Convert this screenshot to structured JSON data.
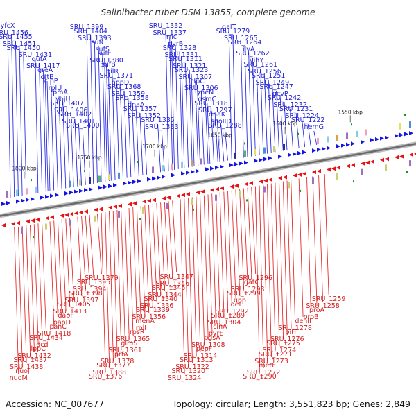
{
  "title": "Salinibacter ruber DSM 13855, complete genome",
  "footer": {
    "accession": "Accession: NC_007677",
    "summary": "Topology: circular; Length: 3,551,823 bp; Genes: 2,849"
  },
  "kbp_marks": [
    {
      "label": "1800 kbp",
      "a": -0.93
    },
    {
      "label": "1750 kbp",
      "a": -0.6
    },
    {
      "label": "1700 kbp",
      "a": -0.27
    },
    {
      "label": "1650 kbp",
      "a": 0.06
    },
    {
      "label": "1600 kbp",
      "a": 0.39
    },
    {
      "label": "1550 kbp",
      "a": 0.72
    }
  ],
  "top_genes": [
    [
      "yfcX",
      -1.0
    ],
    [
      "SRU_1456",
      -0.98
    ],
    [
      "SRU_1455",
      -0.96
    ],
    [
      "SRU_1451",
      -0.94
    ],
    [
      "SRU_1450",
      -0.92
    ],
    [
      "SRU_1431",
      -0.86
    ],
    [
      "gufA",
      -0.84
    ],
    [
      "SRU_1417",
      -0.82
    ],
    [
      "greA",
      -0.81
    ],
    [
      "crtB",
      -0.8
    ],
    [
      "clpP",
      -0.78
    ],
    [
      "rplU",
      -0.76
    ],
    [
      "rpmA",
      -0.74
    ],
    [
      "ybjU",
      -0.72
    ],
    [
      "SRU_1407",
      -0.7
    ],
    [
      "SRU_1406",
      -0.68
    ],
    [
      "SRU_1402",
      -0.66
    ],
    [
      "SRU_1401",
      -0.64
    ],
    [
      "SRU_1400",
      -0.62
    ],
    [
      "SRU_1399",
      -0.6
    ],
    [
      "SRU_1404",
      -0.58
    ],
    [
      "SRU_1393",
      -0.56
    ],
    [
      "sufC",
      -0.54
    ],
    [
      "sufS",
      -0.52
    ],
    [
      "sufE",
      -0.51
    ],
    [
      "SRU_1380",
      -0.5
    ],
    [
      "sufB",
      -0.49
    ],
    [
      "pilR",
      -0.47
    ],
    [
      "SRU_1371",
      -0.45
    ],
    [
      "hppD",
      -0.43
    ],
    [
      "SRU_1368",
      -0.41
    ],
    [
      "SRU_1359",
      -0.39
    ],
    [
      "SRU_1358",
      -0.37
    ],
    [
      "dnaA",
      -0.35
    ],
    [
      "SRU_1357",
      -0.33
    ],
    [
      "SRU_1352",
      -0.31
    ],
    [
      "SRU_1335",
      -0.24
    ],
    [
      "SRU_1333",
      -0.22
    ],
    [
      "SRU_1332",
      -0.2
    ],
    [
      "SRU_1337",
      -0.18
    ],
    [
      "rnc",
      -0.17
    ],
    [
      "pyrB",
      -0.15
    ],
    [
      "SRU_1328",
      -0.13
    ],
    [
      "SRU_1331",
      -0.12
    ],
    [
      "SRU_1311",
      -0.1
    ],
    [
      "SRU_1321",
      -0.08
    ],
    [
      "SRU_1323",
      -0.07
    ],
    [
      "SRU_1307",
      -0.05
    ],
    [
      "clpC",
      -0.04
    ],
    [
      "SRU_1306",
      -0.02
    ],
    [
      "yneN",
      0.0
    ],
    [
      "osmC",
      0.01
    ],
    [
      "SRU_1318",
      0.03
    ],
    [
      "SRU_1297",
      0.05
    ],
    [
      "dnaK",
      0.06
    ],
    [
      "spoIID",
      0.08
    ],
    [
      "SRU_1288",
      0.1
    ],
    [
      "galT",
      0.12
    ],
    [
      "SRU_1279",
      0.14
    ],
    [
      "SRU_1265",
      0.18
    ],
    [
      "SRU_1264",
      0.2
    ],
    [
      "ilvA",
      0.22
    ],
    [
      "SRU_1262",
      0.24
    ],
    [
      "vihY",
      0.26
    ],
    [
      "SRU_1261",
      0.28
    ],
    [
      "SRU_1256",
      0.3
    ],
    [
      "SRU_1251",
      0.32
    ],
    [
      "SRU_1249",
      0.34
    ],
    [
      "SRU_1247",
      0.36
    ],
    [
      "gcvP",
      0.38
    ],
    [
      "SRU_1242",
      0.4
    ],
    [
      "SRU_1232",
      0.43
    ],
    [
      "SRU_1231",
      0.46
    ],
    [
      "SRU_1224",
      0.49
    ],
    [
      "SRU_1222",
      0.52
    ],
    [
      "hemG",
      0.55
    ]
  ],
  "bottom_genes": [
    [
      "nuoM",
      -0.98
    ],
    [
      "nuoJ",
      -0.96
    ],
    [
      "SRU_1438",
      -0.94
    ],
    [
      "SRU_1437",
      -0.92
    ],
    [
      "SRU_1432",
      -0.9
    ],
    [
      "lppC",
      -0.88
    ],
    [
      "dcd",
      -0.86
    ],
    [
      "SRU_1434",
      -0.84
    ],
    [
      "SRU_1418",
      -0.8
    ],
    [
      "panC",
      -0.78
    ],
    [
      "panD",
      -0.76
    ],
    [
      "dapF",
      -0.74
    ],
    [
      "SRU_1413",
      -0.72
    ],
    [
      "SRU_1405",
      -0.7
    ],
    [
      "SRU_1397",
      -0.66
    ],
    [
      "SRU_1398",
      -0.64
    ],
    [
      "SRU_1394",
      -0.62
    ],
    [
      "SRU_1395",
      -0.6
    ],
    [
      "SRU_1379",
      -0.56
    ],
    [
      "SRU_1376",
      -0.54
    ],
    [
      "SRU_1388",
      -0.52
    ],
    [
      "SRU_1377",
      -0.5
    ],
    [
      "SRU_1378",
      -0.48
    ],
    [
      "prfA",
      -0.46
    ],
    [
      "SRU_1361",
      -0.44
    ],
    [
      "glmS",
      -0.42
    ],
    [
      "SRU_1365",
      -0.4
    ],
    [
      "rpsR",
      -0.38
    ],
    [
      "rplI",
      -0.36
    ],
    [
      "menA",
      -0.34
    ],
    [
      "SRU_1356",
      -0.32
    ],
    [
      "SRU_1339",
      -0.3
    ],
    [
      "SRU_1336",
      -0.28
    ],
    [
      "SRU_1340",
      -0.26
    ],
    [
      "SRU_1344",
      -0.24
    ],
    [
      "SRU_1345",
      -0.22
    ],
    [
      "SRU_1346",
      -0.2
    ],
    [
      "SRU_1347",
      -0.18
    ],
    [
      "SRU_1324",
      -0.14
    ],
    [
      "SRU_1320",
      -0.12
    ],
    [
      "SRU_1322",
      -0.1
    ],
    [
      "SRU_1313",
      -0.08
    ],
    [
      "SRU_1314",
      -0.06
    ],
    [
      "pepF",
      -0.04
    ],
    [
      "SRU_1308",
      -0.02
    ],
    [
      "pgsA",
      0.0
    ],
    [
      "pyrE",
      0.02
    ],
    [
      "clnA",
      0.04
    ],
    [
      "SRU_1304",
      0.06
    ],
    [
      "SRU_1289",
      0.08
    ],
    [
      "SRU_1292",
      0.1
    ],
    [
      "def",
      0.12
    ],
    [
      "upp",
      0.14
    ],
    [
      "SRU_1299",
      0.16
    ],
    [
      "SRU_1293",
      0.18
    ],
    [
      "gatC",
      0.2
    ],
    [
      "SRU_1296",
      0.22
    ],
    [
      "SRU_1290",
      0.24
    ],
    [
      "SRU_1272",
      0.26
    ],
    [
      "metE",
      0.28
    ],
    [
      "SRU_1273",
      0.3
    ],
    [
      "SRU_1271",
      0.32
    ],
    [
      "SRU_1274",
      0.34
    ],
    [
      "SRU_1275",
      0.36
    ],
    [
      "SRU_1276",
      0.38
    ],
    [
      "pilT",
      0.4
    ],
    [
      "SRU_1278",
      0.42
    ],
    [
      "dehII",
      0.46
    ],
    [
      "proB",
      0.5
    ],
    [
      "proA",
      0.53
    ],
    [
      "SRU_1258",
      0.56
    ],
    [
      "SRU_1259",
      0.59
    ]
  ],
  "colors": {
    "forward": "#1414e6",
    "reverse": "#e61414",
    "backbone": "#777777",
    "feature_green": "#119922"
  }
}
